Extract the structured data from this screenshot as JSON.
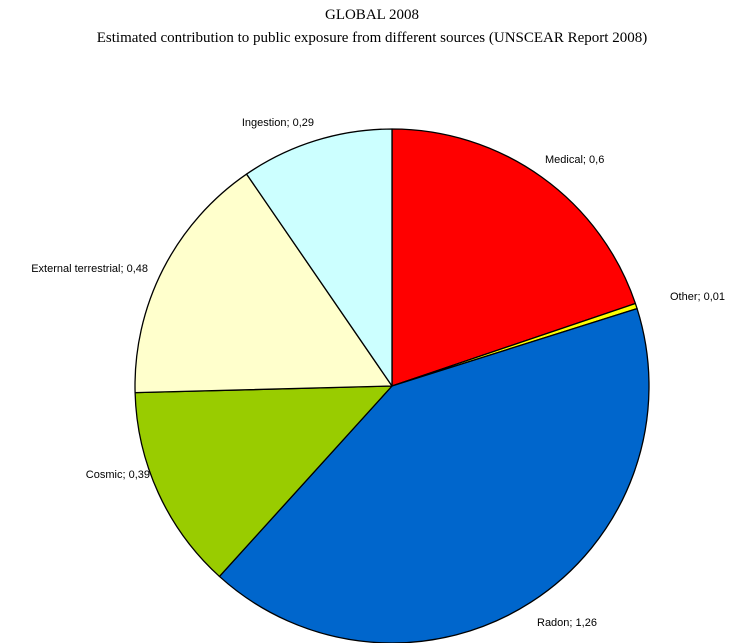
{
  "chart_data": {
    "type": "pie",
    "title": "GLOBAL 2008",
    "subtitle": "Estimated contribution to public exposure from different sources (UNSCEAR Report 2008)",
    "start_angle_deg": 0,
    "direction": "clockwise",
    "slices": [
      {
        "label": "Medical; 0,6",
        "name": "Medical",
        "value": 0.6,
        "color": "#ff0000"
      },
      {
        "label": "Other; 0,01",
        "name": "Other",
        "value": 0.01,
        "color": "#ffff00"
      },
      {
        "label": "Radon; 1,26",
        "name": "Radon",
        "value": 1.26,
        "color": "#0066cc"
      },
      {
        "label": "Cosmic; 0,39",
        "name": "Cosmic",
        "value": 0.39,
        "color": "#99cc00"
      },
      {
        "label": "External terrestrial; 0,48",
        "name": "External terrestrial",
        "value": 0.48,
        "color": "#ffffcc"
      },
      {
        "label": "Ingestion; 0,29",
        "name": "Ingestion",
        "value": 0.29,
        "color": "#ccffff"
      }
    ]
  }
}
